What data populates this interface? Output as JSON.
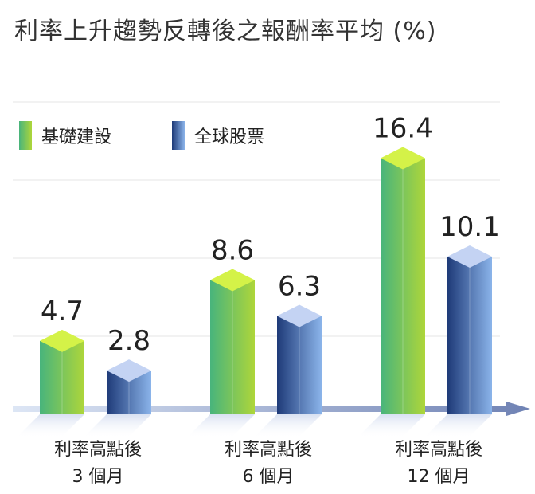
{
  "title": "利率上升趨勢反轉後之報酬率平均 (%)",
  "chart_data": {
    "type": "bar",
    "title": "利率上升趨勢反轉後之報酬率平均 (%)",
    "categories": [
      {
        "line1": "利率高點後",
        "line2": "3 個月"
      },
      {
        "line1": "利率高點後",
        "line2": "6 個月"
      },
      {
        "line1": "利率高點後",
        "line2": "12 個月"
      }
    ],
    "series": [
      {
        "name": "基礎建設",
        "values": [
          4.7,
          8.6,
          16.4
        ],
        "value_labels": [
          "4.7",
          "8.6",
          "16.4"
        ],
        "color_front_start": "#48b47c",
        "color_front_end": "#aed63a",
        "color_top": "#d4f248"
      },
      {
        "name": "全球股票",
        "values": [
          2.8,
          6.3,
          10.1
        ],
        "value_labels": [
          "2.8",
          "6.3",
          "10.1"
        ],
        "color_front_start": "#1e3a78",
        "color_front_end": "#8bb4ea",
        "color_top": "#c4d3f3"
      }
    ],
    "ylim": [
      0,
      20
    ],
    "grid": true,
    "legend": "top-left"
  }
}
